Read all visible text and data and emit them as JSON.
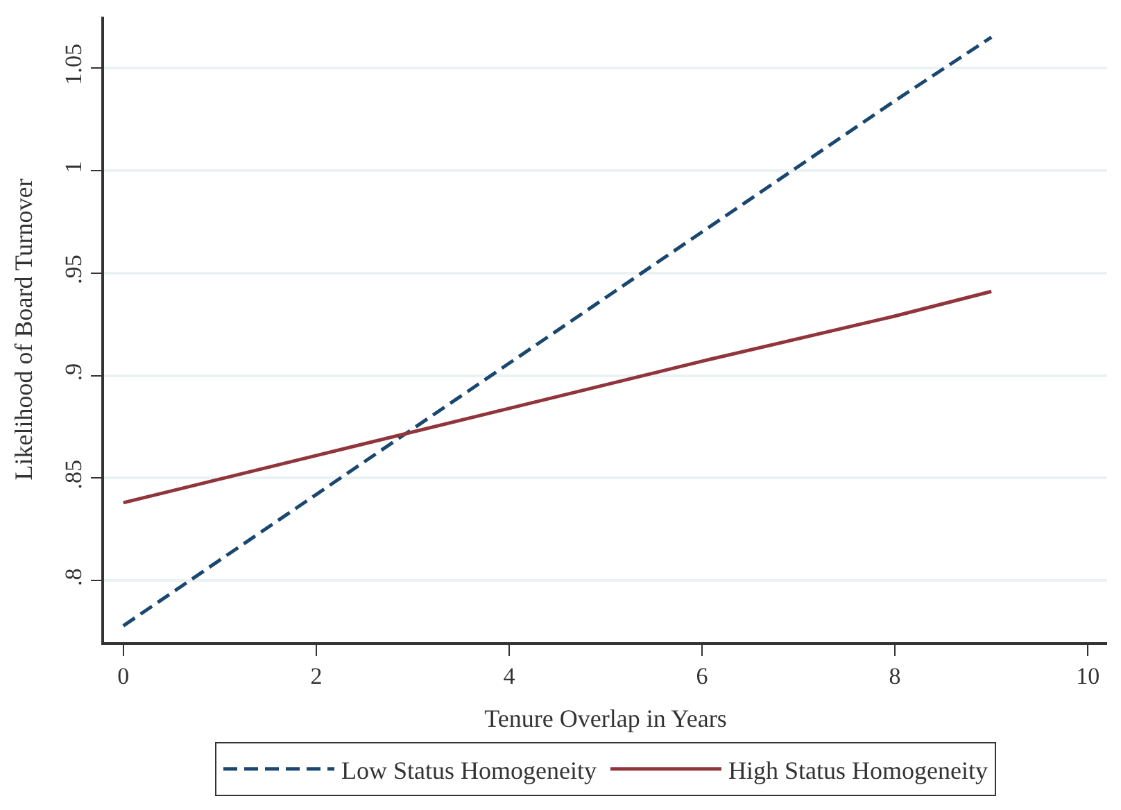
{
  "chart_data": {
    "type": "line",
    "xlabel": "Tenure Overlap in Years",
    "ylabel": "Likelihood of Board Turnover",
    "x": [
      0,
      2,
      4,
      6,
      8,
      9
    ],
    "series": [
      {
        "name": "Low Status Homogeneity",
        "color": "#1a476f",
        "line_style": "dashed",
        "values": [
          0.778,
          0.842,
          0.906,
          0.97,
          1.034,
          1.065
        ]
      },
      {
        "name": "High Status Homogeneity",
        "color": "#90353b",
        "line_style": "solid",
        "values": [
          0.838,
          0.861,
          0.884,
          0.907,
          0.929,
          0.941
        ]
      }
    ],
    "xlim": [
      -0.2,
      10.2
    ],
    "xticks": [
      0,
      2,
      4,
      6,
      8,
      10
    ],
    "ylim": [
      0.77,
      1.075
    ],
    "yticks": [
      {
        "value": 0.8,
        "label": ".8"
      },
      {
        "value": 0.85,
        "label": ".85"
      },
      {
        "value": 0.9,
        "label": ".9"
      },
      {
        "value": 0.95,
        "label": ".95"
      },
      {
        "value": 1,
        "label": "1"
      },
      {
        "value": 1.05,
        "label": "1.05"
      }
    ],
    "grid": "y",
    "legend": "bottom",
    "marker": "none"
  }
}
